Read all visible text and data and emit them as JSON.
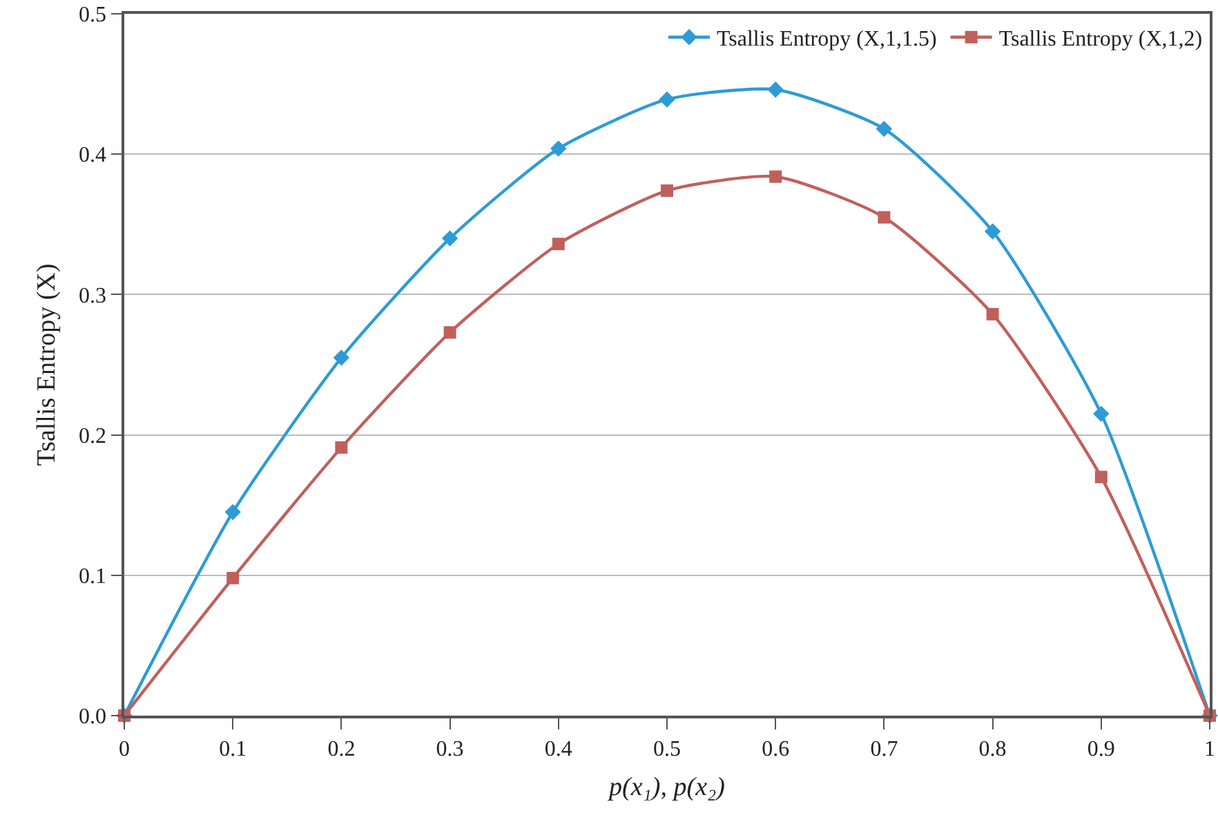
{
  "chart_data": {
    "type": "line",
    "xlabel": "p(x₁), p(x₂)",
    "ylabel": "Tsallis Entropy (X)",
    "x": [
      0,
      0.1,
      0.2,
      0.3,
      0.4,
      0.5,
      0.6,
      0.7,
      0.8,
      0.9,
      1
    ],
    "series": [
      {
        "name": "Tsallis Entropy (X,1,1.5)",
        "color": "#2e9bd6",
        "marker": "diamond",
        "values": [
          0,
          0.145,
          0.255,
          0.34,
          0.404,
          0.439,
          0.446,
          0.418,
          0.345,
          0.215,
          0
        ]
      },
      {
        "name": "Tsallis Entropy (X,1,2)",
        "color": "#c0605c",
        "marker": "square",
        "values": [
          0,
          0.098,
          0.191,
          0.273,
          0.336,
          0.374,
          0.384,
          0.355,
          0.286,
          0.17,
          0
        ]
      }
    ],
    "xlim": [
      0,
      1
    ],
    "xticks": [
      0,
      0.1,
      0.2,
      0.3,
      0.4,
      0.5,
      0.6,
      0.7,
      0.8,
      0.9,
      1
    ],
    "ylim": [
      0,
      0.5
    ],
    "yticks": [
      {
        "value": 0,
        "label": "0.0"
      },
      0.1,
      0.2,
      0.3,
      0.4,
      0.5
    ],
    "grid": "y",
    "legend": "top right",
    "line_style": "solid"
  }
}
